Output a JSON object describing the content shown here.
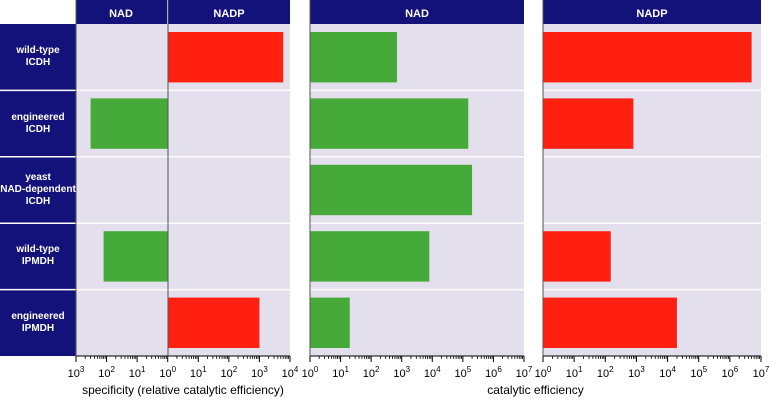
{
  "rows": [
    {
      "label": "wild-type\nICDH"
    },
    {
      "label": "engineered\nICDH"
    },
    {
      "label": "yeast\nNAD-dependent\nICDH"
    },
    {
      "label": "wild-type\nIPMDH"
    },
    {
      "label": "engineered\nIPMDH"
    }
  ],
  "panel_headers": {
    "specificity_nad": "NAD",
    "specificity_nadp": "NADP",
    "catalytic_nad": "NAD",
    "catalytic_nadp": "NADP"
  },
  "axis_titles": {
    "specificity": "specificity (relative catalytic efficiency)",
    "catalytic": "catalytic efficiency"
  },
  "colors": {
    "nad": "#46aa3a",
    "nadp": "#ff2010",
    "header_bg": "#13127a",
    "plot_bg": "#e3dfec"
  },
  "chart_data": [
    {
      "type": "bar",
      "orientation": "horizontal",
      "xscale": "log",
      "xlim": [
        0.001,
        10000
      ],
      "xtick_labels": [
        "10^3",
        "10^2",
        "10^1",
        "10^0",
        "10^1",
        "10^2",
        "10^3",
        "10^4"
      ],
      "xlabel": "specificity (relative catalytic efficiency)",
      "categories": [
        "wild-type ICDH",
        "engineered ICDH",
        "yeast NAD-dependent ICDH",
        "wild-type IPMDH",
        "engineered IPMDH"
      ],
      "values": [
        6000,
        0.003,
        null,
        0.008,
        1000
      ],
      "bar_colors": [
        "nadp",
        "nad",
        null,
        "nad",
        "nadp"
      ]
    },
    {
      "type": "bar",
      "orientation": "horizontal",
      "xscale": "log",
      "xlim": [
        1,
        10000000
      ],
      "xtick_labels": [
        "10^0",
        "10^1",
        "10^2",
        "10^3",
        "10^4",
        "10^5",
        "10^6",
        "10^7"
      ],
      "xlabel": "catalytic efficiency",
      "title": "NAD",
      "categories": [
        "wild-type ICDH",
        "engineered ICDH",
        "yeast NAD-dependent ICDH",
        "wild-type IPMDH",
        "engineered IPMDH"
      ],
      "values": [
        700,
        150000,
        200000,
        8000,
        20
      ]
    },
    {
      "type": "bar",
      "orientation": "horizontal",
      "xscale": "log",
      "xlim": [
        1,
        10000000
      ],
      "xtick_labels": [
        "10^0",
        "10^1",
        "10^2",
        "10^3",
        "10^4",
        "10^5",
        "10^6",
        "10^7"
      ],
      "xlabel": "catalytic efficiency",
      "title": "NADP",
      "categories": [
        "wild-type ICDH",
        "engineered ICDH",
        "yeast NAD-dependent ICDH",
        "wild-type IPMDH",
        "engineered IPMDH"
      ],
      "values": [
        5000000,
        800,
        null,
        150,
        20000
      ]
    }
  ]
}
